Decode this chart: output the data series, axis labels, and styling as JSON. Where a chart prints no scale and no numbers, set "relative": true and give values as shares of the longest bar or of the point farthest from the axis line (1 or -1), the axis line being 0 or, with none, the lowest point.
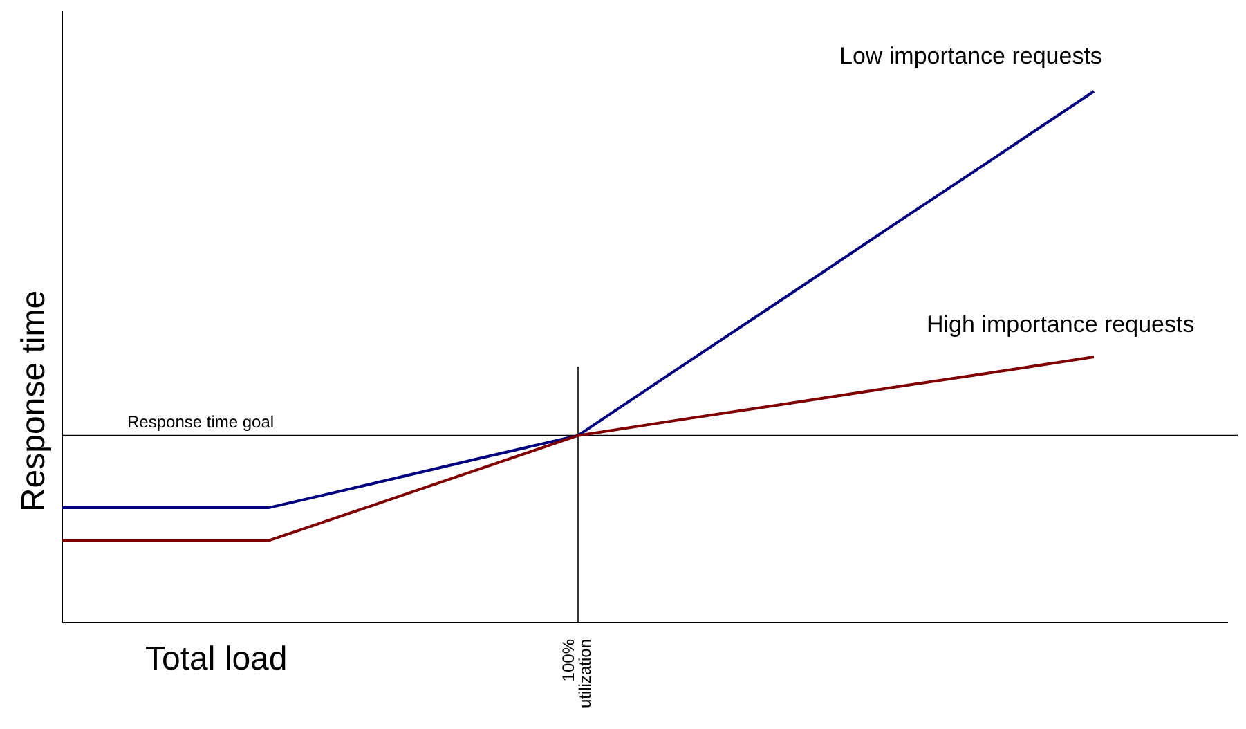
{
  "chart_data": {
    "type": "line",
    "relative": true,
    "xlabel": "Total load",
    "ylabel": "Response time",
    "categories": [
      null,
      null,
      null,
      null,
      null,
      null,
      null,
      null,
      null,
      null,
      null
    ],
    "marker": "none",
    "line_style": "solid",
    "series": [
      {
        "name": "Low importance requests",
        "color": "#000080",
        "values": [
          0.216,
          0.216,
          0.216,
          0.261,
          0.307,
          0.352,
          0.482,
          0.611,
          0.741,
          0.87,
          1
        ]
      },
      {
        "name": "High importance requests",
        "color": "#800000",
        "values": [
          0.154,
          0.154,
          0.154,
          0.22,
          0.286,
          0.352,
          0.382,
          0.411,
          0.441,
          0.47,
          0.5
        ]
      }
    ],
    "ref_lines": [
      {
        "axis": "y",
        "value": 0.352,
        "label": "Response time goal",
        "color": "#000000"
      }
    ],
    "annotations": [
      "100% utilization"
    ]
  }
}
